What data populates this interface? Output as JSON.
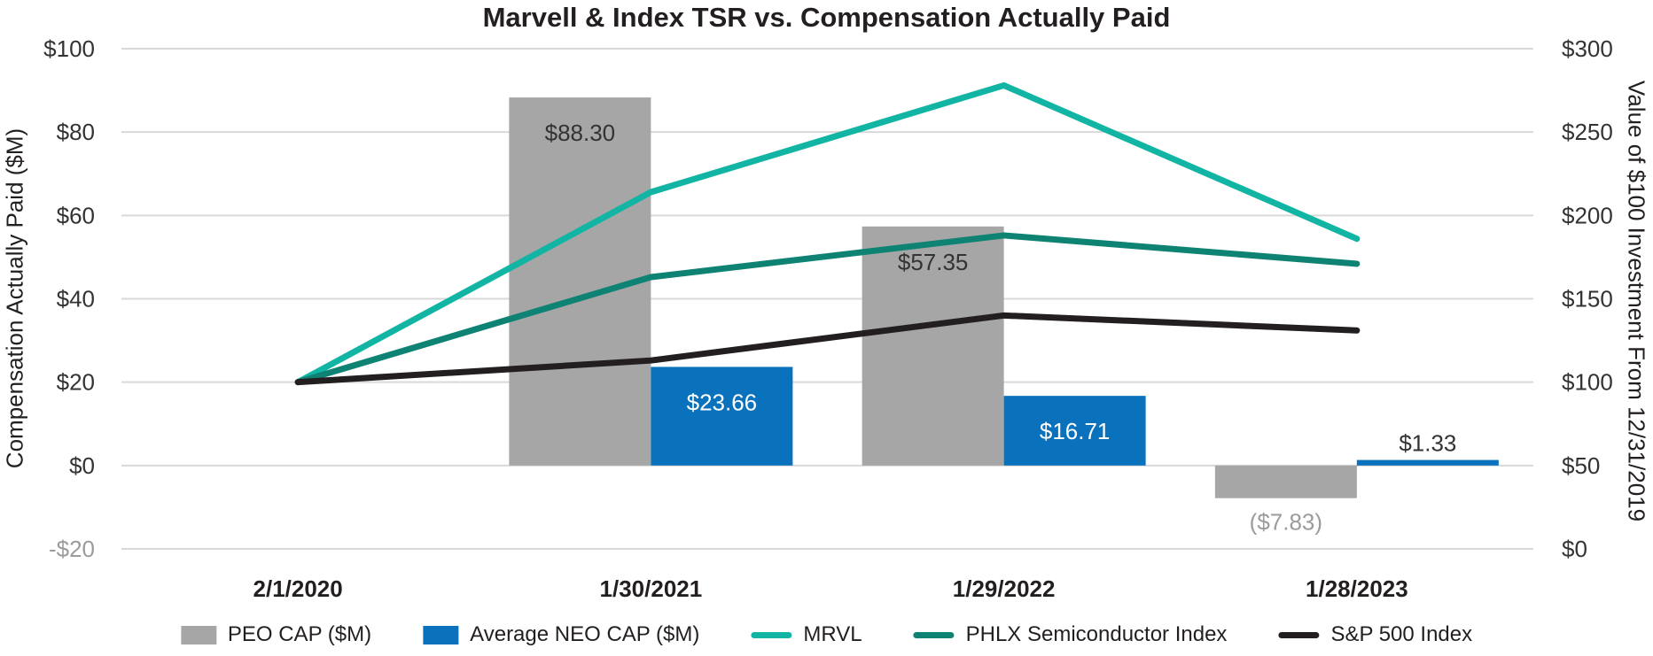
{
  "chart_data": {
    "type": "combo-bar-line",
    "title": "Marvell & Index TSR vs. Compensation Actually Paid",
    "categories": [
      "2/1/2020",
      "1/30/2021",
      "1/29/2022",
      "1/28/2023"
    ],
    "left_axis": {
      "title": "Compensation Actually Paid ($M)",
      "min": -20,
      "max": 100,
      "step": 20,
      "ticks": [
        {
          "label": "$100",
          "color": "#333333"
        },
        {
          "label": "$80",
          "color": "#333333"
        },
        {
          "label": "$60",
          "color": "#333333"
        },
        {
          "label": "$40",
          "color": "#333333"
        },
        {
          "label": "$20",
          "color": "#333333"
        },
        {
          "label": "$0",
          "color": "#333333"
        },
        {
          "label": "-$20",
          "color": "#9B9B9B"
        }
      ]
    },
    "right_axis": {
      "title": "Value of $100 Investment From 12/31/2019",
      "min": 0,
      "max": 300,
      "step": 50,
      "ticks": [
        {
          "label": "$300",
          "color": "#333333"
        },
        {
          "label": "$250",
          "color": "#333333"
        },
        {
          "label": "$200",
          "color": "#333333"
        },
        {
          "label": "$150",
          "color": "#333333"
        },
        {
          "label": "$100",
          "color": "#333333"
        },
        {
          "label": "$50",
          "color": "#333333"
        },
        {
          "label": "$0",
          "color": "#333333"
        }
      ]
    },
    "bar_series": [
      {
        "name": "PEO CAP ($M)",
        "color": "#A6A6A6",
        "axis": "left",
        "values": [
          null,
          88.3,
          57.35,
          -7.83
        ],
        "labels": [
          null,
          {
            "text": "$88.30",
            "color": "#333333",
            "placement": "inside"
          },
          {
            "text": "$57.35",
            "color": "#333333",
            "placement": "inside"
          },
          {
            "text": "($7.83)",
            "color": "#9B9B9B",
            "placement": "below"
          }
        ]
      },
      {
        "name": "Average NEO CAP ($M)",
        "color": "#0A72BC",
        "axis": "left",
        "values": [
          null,
          23.66,
          16.71,
          1.33
        ],
        "labels": [
          null,
          {
            "text": "$23.66",
            "color": "#FFFFFF",
            "placement": "inside"
          },
          {
            "text": "$16.71",
            "color": "#FFFFFF",
            "placement": "inside"
          },
          {
            "text": "$1.33",
            "color": "#333333",
            "placement": "above"
          }
        ]
      }
    ],
    "line_series": [
      {
        "name": "MRVL",
        "color": "#12B5A3",
        "axis": "right",
        "values": [
          100,
          214,
          278,
          186
        ]
      },
      {
        "name": "PHLX Semiconductor Index",
        "color": "#0E8374",
        "axis": "right",
        "values": [
          100,
          163,
          188,
          171
        ]
      },
      {
        "name": "S&P 500 Index",
        "color": "#231F20",
        "axis": "right",
        "values": [
          100,
          113,
          140,
          131
        ]
      }
    ],
    "legend": [
      {
        "label": "PEO CAP ($M)",
        "swatch": "bar",
        "color": "#A6A6A6"
      },
      {
        "label": "Average NEO CAP ($M)",
        "swatch": "bar",
        "color": "#0A72BC"
      },
      {
        "label": "MRVL",
        "swatch": "line",
        "color": "#12B5A3"
      },
      {
        "label": "PHLX Semiconductor Index",
        "swatch": "line",
        "color": "#0E8374"
      },
      {
        "label": "S&P 500 Index",
        "swatch": "line",
        "color": "#231F20"
      }
    ],
    "gridline_color": "#D9D9D9"
  }
}
